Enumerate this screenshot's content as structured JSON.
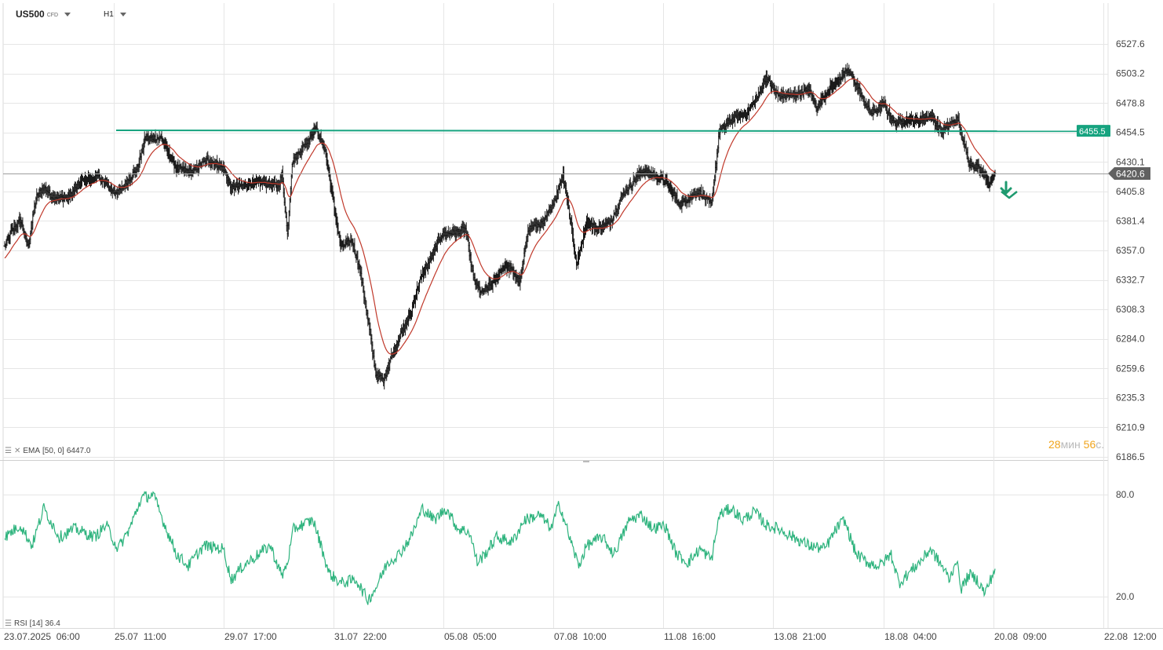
{
  "header": {
    "symbol": "US500",
    "symbol_sup": "CFD",
    "timeframe": "H1"
  },
  "indicators": {
    "ema_label": "EMA",
    "ema_params": "[50, 0]",
    "ema_value": "6447.0",
    "rsi_label": "RSI",
    "rsi_params": "[14]",
    "rsi_value": "36.4"
  },
  "countdown": {
    "min": "28",
    "min_unit": "мин",
    "sec": "56",
    "sec_unit": "с."
  },
  "colors": {
    "grid": "#e6e6e6",
    "candle": "#1a1a1a",
    "ema": "#c0392b",
    "resistance": "#16a37f",
    "rsi": "#2db37d",
    "price_badge": "#616161",
    "level_badge": "#16a37f",
    "arrow": "#1e9a6f"
  },
  "chart_data": {
    "type": "ohlc",
    "timeframe": "H1",
    "price_ticks": [
      "6527.6",
      "6503.2",
      "6478.8",
      "6454.5",
      "6430.1",
      "6405.8",
      "6381.4",
      "6357.0",
      "6332.7",
      "6308.3",
      "6284.0",
      "6259.6",
      "6235.3",
      "6210.9",
      "6186.5"
    ],
    "rsi_ticks": [
      "80.0",
      "20.0"
    ],
    "x_ticks": [
      "23.07.2025  06:00",
      "25.07  11:00",
      "29.07  17:00",
      "31.07  22:00",
      "05.08  05:00",
      "07.08  10:00",
      "11.08  16:00",
      "13.08  21:00",
      "18.08  04:00",
      "20.08  09:00",
      "22.08  12:00"
    ],
    "current_price": "6420.6",
    "resistance_level": "6455.5",
    "trend_signal": "down",
    "close_anchors": [
      [
        0,
        6360
      ],
      [
        8,
        6372
      ],
      [
        20,
        6382
      ],
      [
        30,
        6360
      ],
      [
        40,
        6400
      ],
      [
        50,
        6410
      ],
      [
        60,
        6402
      ],
      [
        80,
        6400
      ],
      [
        100,
        6415
      ],
      [
        120,
        6418
      ],
      [
        140,
        6405
      ],
      [
        150,
        6408
      ],
      [
        170,
        6425
      ],
      [
        180,
        6450
      ],
      [
        200,
        6450
      ],
      [
        220,
        6425
      ],
      [
        240,
        6422
      ],
      [
        260,
        6432
      ],
      [
        280,
        6425
      ],
      [
        290,
        6408
      ],
      [
        310,
        6412
      ],
      [
        330,
        6413
      ],
      [
        350,
        6410
      ],
      [
        355,
        6420
      ],
      [
        362,
        6370
      ],
      [
        368,
        6430
      ],
      [
        385,
        6445
      ],
      [
        398,
        6458
      ],
      [
        410,
        6440
      ],
      [
        420,
        6400
      ],
      [
        430,
        6360
      ],
      [
        445,
        6365
      ],
      [
        455,
        6340
      ],
      [
        465,
        6300
      ],
      [
        475,
        6255
      ],
      [
        485,
        6250
      ],
      [
        495,
        6270
      ],
      [
        505,
        6285
      ],
      [
        520,
        6305
      ],
      [
        530,
        6330
      ],
      [
        545,
        6350
      ],
      [
        560,
        6370
      ],
      [
        575,
        6372
      ],
      [
        590,
        6375
      ],
      [
        600,
        6335
      ],
      [
        610,
        6322
      ],
      [
        625,
        6330
      ],
      [
        640,
        6345
      ],
      [
        650,
        6340
      ],
      [
        660,
        6330
      ],
      [
        670,
        6375
      ],
      [
        690,
        6380
      ],
      [
        705,
        6400
      ],
      [
        715,
        6420
      ],
      [
        725,
        6380
      ],
      [
        732,
        6345
      ],
      [
        745,
        6380
      ],
      [
        760,
        6375
      ],
      [
        775,
        6380
      ],
      [
        790,
        6402
      ],
      [
        800,
        6410
      ],
      [
        815,
        6422
      ],
      [
        830,
        6420
      ],
      [
        845,
        6415
      ],
      [
        855,
        6405
      ],
      [
        865,
        6395
      ],
      [
        875,
        6400
      ],
      [
        890,
        6405
      ],
      [
        905,
        6395
      ],
      [
        915,
        6455
      ],
      [
        930,
        6465
      ],
      [
        950,
        6470
      ],
      [
        965,
        6485
      ],
      [
        975,
        6500
      ],
      [
        990,
        6485
      ],
      [
        1010,
        6485
      ],
      [
        1030,
        6490
      ],
      [
        1040,
        6475
      ],
      [
        1055,
        6490
      ],
      [
        1070,
        6500
      ],
      [
        1080,
        6505
      ],
      [
        1090,
        6495
      ],
      [
        1100,
        6480
      ],
      [
        1110,
        6470
      ],
      [
        1125,
        6478
      ],
      [
        1140,
        6462
      ],
      [
        1155,
        6465
      ],
      [
        1170,
        6465
      ],
      [
        1185,
        6468
      ],
      [
        1200,
        6455
      ],
      [
        1212,
        6462
      ],
      [
        1220,
        6465
      ],
      [
        1228,
        6445
      ],
      [
        1235,
        6430
      ],
      [
        1248,
        6425
      ],
      [
        1262,
        6412
      ],
      [
        1268,
        6420.6
      ]
    ],
    "rsi_anchors": [
      [
        0,
        55
      ],
      [
        20,
        62
      ],
      [
        35,
        50
      ],
      [
        50,
        72
      ],
      [
        70,
        55
      ],
      [
        90,
        60
      ],
      [
        115,
        55
      ],
      [
        130,
        62
      ],
      [
        145,
        48
      ],
      [
        160,
        60
      ],
      [
        175,
        78
      ],
      [
        190,
        80
      ],
      [
        205,
        62
      ],
      [
        220,
        45
      ],
      [
        235,
        38
      ],
      [
        255,
        50
      ],
      [
        280,
        48
      ],
      [
        290,
        30
      ],
      [
        305,
        38
      ],
      [
        325,
        45
      ],
      [
        340,
        50
      ],
      [
        355,
        32
      ],
      [
        362,
        40
      ],
      [
        370,
        60
      ],
      [
        395,
        65
      ],
      [
        405,
        50
      ],
      [
        415,
        34
      ],
      [
        430,
        28
      ],
      [
        450,
        30
      ],
      [
        465,
        18
      ],
      [
        475,
        25
      ],
      [
        490,
        40
      ],
      [
        505,
        45
      ],
      [
        520,
        55
      ],
      [
        535,
        72
      ],
      [
        550,
        65
      ],
      [
        565,
        72
      ],
      [
        580,
        60
      ],
      [
        595,
        58
      ],
      [
        605,
        40
      ],
      [
        615,
        45
      ],
      [
        630,
        55
      ],
      [
        650,
        52
      ],
      [
        665,
        65
      ],
      [
        685,
        68
      ],
      [
        700,
        60
      ],
      [
        710,
        75
      ],
      [
        725,
        52
      ],
      [
        735,
        38
      ],
      [
        745,
        50
      ],
      [
        765,
        55
      ],
      [
        780,
        45
      ],
      [
        800,
        65
      ],
      [
        815,
        68
      ],
      [
        830,
        60
      ],
      [
        845,
        62
      ],
      [
        860,
        45
      ],
      [
        875,
        40
      ],
      [
        890,
        48
      ],
      [
        905,
        42
      ],
      [
        915,
        68
      ],
      [
        930,
        72
      ],
      [
        945,
        65
      ],
      [
        960,
        70
      ],
      [
        975,
        62
      ],
      [
        990,
        60
      ],
      [
        1010,
        55
      ],
      [
        1030,
        50
      ],
      [
        1050,
        48
      ],
      [
        1065,
        60
      ],
      [
        1075,
        65
      ],
      [
        1090,
        45
      ],
      [
        1105,
        40
      ],
      [
        1120,
        38
      ],
      [
        1135,
        45
      ],
      [
        1145,
        28
      ],
      [
        1160,
        35
      ],
      [
        1175,
        42
      ],
      [
        1185,
        48
      ],
      [
        1200,
        38
      ],
      [
        1210,
        30
      ],
      [
        1218,
        42
      ],
      [
        1225,
        25
      ],
      [
        1235,
        33
      ],
      [
        1245,
        30
      ],
      [
        1255,
        22
      ],
      [
        1268,
        36.4
      ]
    ]
  }
}
